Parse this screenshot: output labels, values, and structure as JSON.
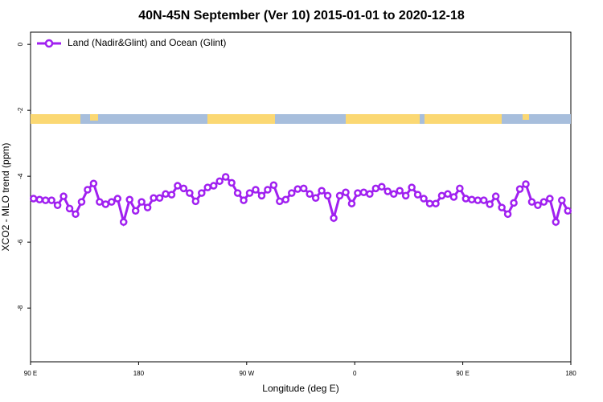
{
  "chart_data": {
    "type": "line",
    "title": "40N-45N September (Ver 10)   2015-01-01 to 2020-12-18",
    "x_label": "Longitude (deg E)",
    "y_label": "XCO2 - MLO trend (ppm)",
    "xlim": [
      90,
      540
    ],
    "xticks": [
      {
        "value": 90,
        "label": "90 E"
      },
      {
        "value": 180,
        "label": "180"
      },
      {
        "value": 270,
        "label": "90 W"
      },
      {
        "value": 360,
        "label": "0"
      },
      {
        "value": 450,
        "label": "90 E"
      },
      {
        "value": 540,
        "label": "180"
      }
    ],
    "ylim": [
      -9.63,
      0.37
    ],
    "yticks": [
      0,
      -2,
      -4,
      -6,
      -8
    ],
    "legend": "top-left",
    "x": [
      92.5,
      97.5,
      102.5,
      107.5,
      112.5,
      117.5,
      122.5,
      127.5,
      132.5,
      137.5,
      142.5,
      147.5,
      152.5,
      157.5,
      162.5,
      167.5,
      172.5,
      177.5,
      182.5,
      187.5,
      192.5,
      197.5,
      202.5,
      207.5,
      212.5,
      217.5,
      222.5,
      227.5,
      232.5,
      237.5,
      242.5,
      247.5,
      252.5,
      257.5,
      262.5,
      267.5,
      272.5,
      277.5,
      282.5,
      287.5,
      292.5,
      297.5,
      302.5,
      307.5,
      312.5,
      317.5,
      322.5,
      327.5,
      332.5,
      337.5,
      342.5,
      347.5,
      352.5,
      357.5,
      362.5,
      367.5,
      372.5,
      377.5,
      382.5,
      387.5,
      392.5,
      397.5,
      402.5,
      407.5,
      412.5,
      417.5,
      422.5,
      427.5,
      432.5,
      437.5,
      442.5,
      447.5,
      452.5,
      457.5,
      462.5,
      467.5,
      472.5,
      477.5,
      482.5,
      487.5,
      492.5,
      497.5,
      502.5,
      507.5,
      512.5,
      517.5,
      522.5,
      527.5,
      532.5,
      537.5
    ],
    "series": [
      {
        "name": "Land (Nadir&Glint) and Ocean (Glint)",
        "color": "#a020f0",
        "values": [
          -4.68,
          -4.71,
          -4.73,
          -4.73,
          -4.88,
          -4.61,
          -4.98,
          -5.15,
          -4.78,
          -4.41,
          -4.22,
          -4.78,
          -4.85,
          -4.78,
          -4.68,
          -5.39,
          -4.71,
          -5.05,
          -4.78,
          -4.95,
          -4.66,
          -4.66,
          -4.54,
          -4.56,
          -4.29,
          -4.37,
          -4.51,
          -4.76,
          -4.51,
          -4.34,
          -4.29,
          -4.15,
          -4.02,
          -4.2,
          -4.51,
          -4.73,
          -4.51,
          -4.41,
          -4.59,
          -4.41,
          -4.27,
          -4.76,
          -4.71,
          -4.51,
          -4.39,
          -4.37,
          -4.54,
          -4.66,
          -4.44,
          -4.59,
          -5.27,
          -4.59,
          -4.49,
          -4.83,
          -4.51,
          -4.49,
          -4.54,
          -4.37,
          -4.32,
          -4.46,
          -4.54,
          -4.44,
          -4.59,
          -4.34,
          -4.56,
          -4.68,
          -4.83,
          -4.83,
          -4.59,
          -4.54,
          -4.63,
          -4.37,
          -4.68,
          -4.71,
          -4.73,
          -4.73,
          -4.85,
          -4.61,
          -4.95,
          -5.15,
          -4.81,
          -4.39,
          -4.24,
          -4.78,
          -4.88,
          -4.78,
          -4.68,
          -5.39,
          -4.73,
          -5.05
        ]
      }
    ]
  }
}
